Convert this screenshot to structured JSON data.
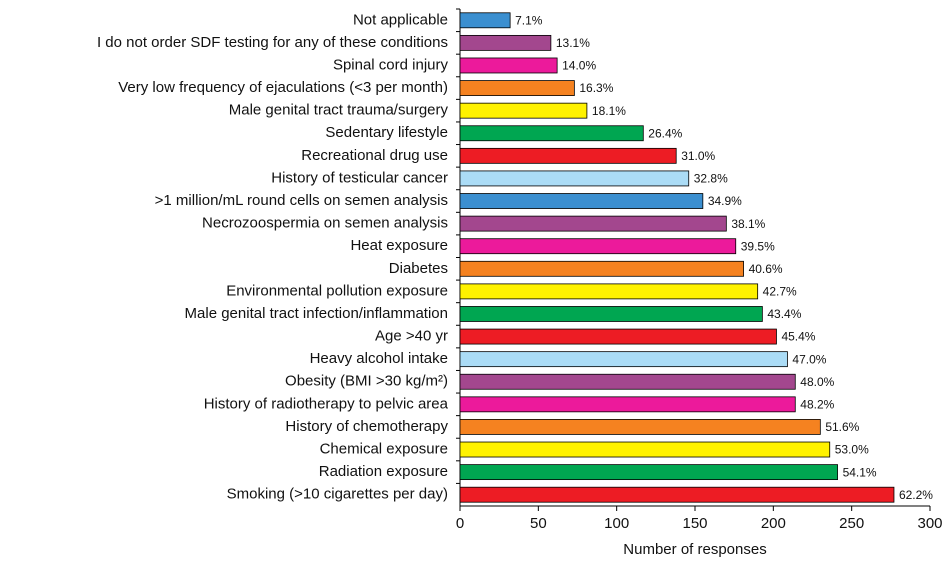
{
  "chart_data": {
    "type": "barh",
    "x_label": "Number of responses",
    "categories": [
      "Not applicable",
      "I do not order SDF testing for any of these conditions",
      "Spinal cord injury",
      "Very low frequency of ejaculations (<3 per month)",
      "Male genital tract trauma/surgery",
      "Sedentary lifestyle",
      "Recreational drug use",
      "History of testicular cancer",
      ">1 million/mL round cells on semen analysis",
      "Necrozoospermia on semen analysis",
      "Heat exposure",
      "Diabetes",
      "Environmental pollution exposure",
      "Male genital tract infection/inflammation",
      "Age >40 yr",
      "Heavy alcohol intake",
      "Obesity (BMI >30 kg/m²)",
      "History of radiotherapy to pelvic area",
      "History of chemotherapy",
      "Chemical exposure",
      "Radiation exposure",
      "Smoking (>10 cigarettes per day)"
    ],
    "values": [
      32,
      58,
      62,
      73,
      81,
      117,
      138,
      146,
      155,
      170,
      176,
      181,
      190,
      193,
      202,
      209,
      214,
      214,
      230,
      236,
      241,
      277
    ],
    "value_labels": [
      "7.1%",
      "13.1%",
      "14.0%",
      "16.3%",
      "18.1%",
      "26.4%",
      "31.0%",
      "32.8%",
      "34.9%",
      "38.1%",
      "39.5%",
      "40.6%",
      "42.7%",
      "43.4%",
      "45.4%",
      "47.0%",
      "48.0%",
      "48.2%",
      "51.6%",
      "53.0%",
      "54.1%",
      "62.2%"
    ],
    "colors": [
      "#3b8fd0",
      "#a3478e",
      "#ec1a9b",
      "#f58220",
      "#fff200",
      "#00a651",
      "#ed1c24",
      "#abdcf6",
      "#3b8fd0",
      "#a3478e",
      "#ec1a9b",
      "#f58220",
      "#fff200",
      "#00a651",
      "#ed1c24",
      "#abdcf6",
      "#a3478e",
      "#ec1a9b",
      "#f58220",
      "#fff200",
      "#00a651",
      "#ed1c24"
    ],
    "xlim": [
      0,
      300
    ],
    "xticks": [
      0,
      50,
      100,
      150,
      200,
      250,
      300
    ]
  }
}
